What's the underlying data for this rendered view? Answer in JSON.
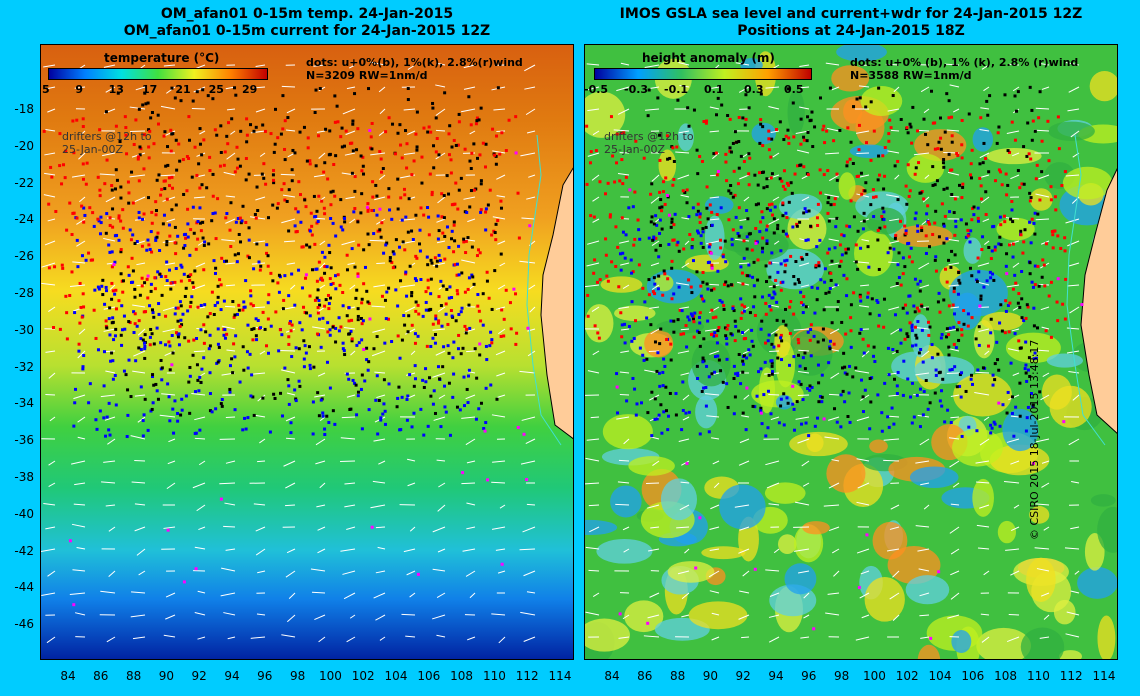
{
  "left": {
    "title1": "OM_afan01 0-15m temp. 24-Jan-2015",
    "title2": "OM_afan01 0-15m current for 24-Jan-2015 12Z",
    "colorbar_title": "temperature (°C)",
    "colorbar_ticks": [
      "5",
      "9",
      "13",
      "17",
      "21",
      "25",
      "29"
    ],
    "dots_line1": "dots: u+0%(b), 1%(k), 2.8%(r)wind",
    "dots_line2": "N=3209 RW=1nm/d",
    "drifters1": "drifters @12h to",
    "drifters2": "25-Jan-00Z"
  },
  "right": {
    "title1": "IMOS GSLA sea level and current+wdr for 24-Jan-2015 12Z",
    "title2": "Positions at 24-Jan-2015 18Z",
    "colorbar_title": "height anomaly (m)",
    "colorbar_ticks": [
      "-0.5",
      "-0.3",
      "-0.1",
      "0.1",
      "0.3",
      "0.5"
    ],
    "dots_line1": "dots: u+0% (b), 1% (k), 2.8% (r)wind",
    "dots_line2": "N=3588 RW=1nm/d",
    "drifters1": "drifters @12h to",
    "drifters2": "25-Jan-00Z"
  },
  "y_ticks": [
    "-18",
    "-20",
    "-22",
    "-24",
    "-26",
    "-28",
    "-30",
    "-32",
    "-34",
    "-36",
    "-38",
    "-40",
    "-42",
    "-44",
    "-46"
  ],
  "x_ticks": [
    "84",
    "86",
    "88",
    "90",
    "92",
    "94",
    "96",
    "98",
    "100",
    "102",
    "104",
    "106",
    "108",
    "110",
    "112",
    "114"
  ],
  "credit": "© CSIRO 2015   18-Jul-2015 13:48:17",
  "colors": {
    "background": "#00ccff",
    "land": "#ffcc99",
    "coast_contour": "#40e0d0",
    "dot_blue": "#0000ff",
    "dot_black": "#000000",
    "dot_red": "#ff0000",
    "dot_magenta": "#ff00ff"
  }
}
